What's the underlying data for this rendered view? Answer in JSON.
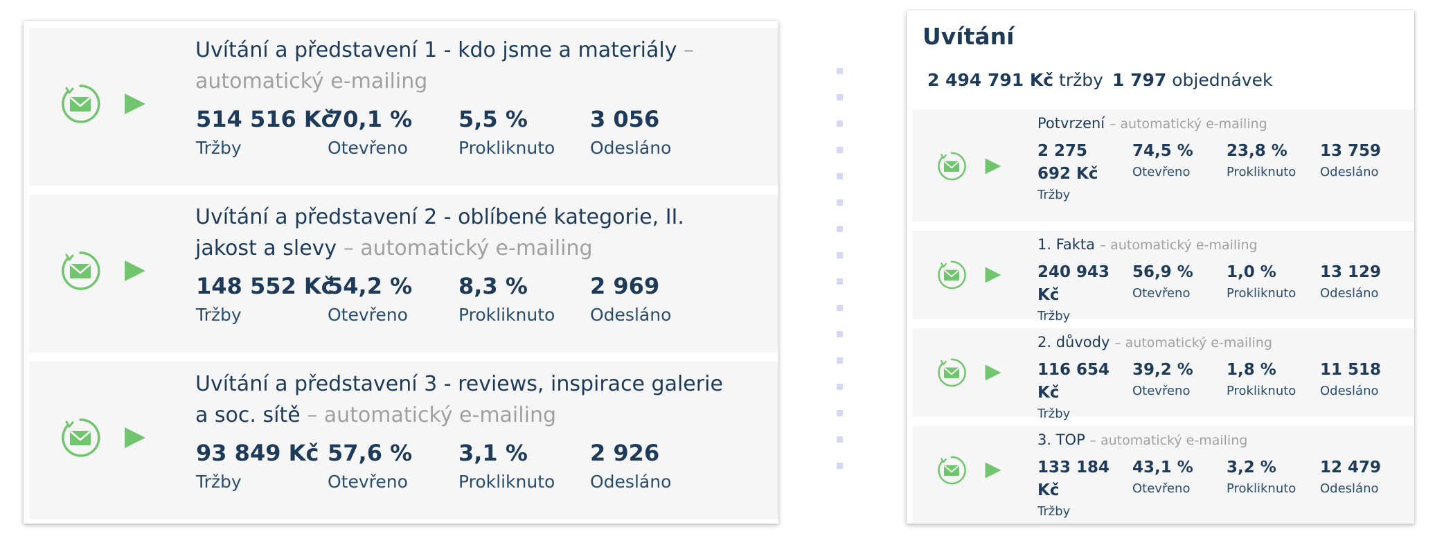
{
  "colors": {
    "accent_green": "#71c56f",
    "text_navy": "#1d3b58",
    "muted": "#a0a0a0",
    "row_bg": "#f6f6f6"
  },
  "icons": {
    "mail": "mail-circle-icon",
    "play": "play-icon"
  },
  "left_campaigns": [
    {
      "title": "Uvítání a představení 1 - kdo jsme a materiály",
      "type": "– automatický e-mailing",
      "revenue": "514 516 Kč",
      "revenue_label": "Tržby",
      "opened": "70,1 %",
      "opened_label": "Otevřeno",
      "clicked": "5,5 %",
      "clicked_label": "Prokliknuto",
      "sent": "3 056",
      "sent_label": "Odesláno"
    },
    {
      "title": "Uvítání a představení 2 - oblíbené kategorie, II. jakost a slevy",
      "type": "– automatický e-mailing",
      "revenue": "148 552 Kč",
      "revenue_label": "Tržby",
      "opened": "54,2 %",
      "opened_label": "Otevřeno",
      "clicked": "8,3 %",
      "clicked_label": "Prokliknuto",
      "sent": "2 969",
      "sent_label": "Odesláno"
    },
    {
      "title": "Uvítání a představení 3 - reviews, inspirace galerie a soc. sítě",
      "type": "– automatický e-mailing",
      "revenue": "93 849 Kč",
      "revenue_label": "Tržby",
      "opened": "57,6 %",
      "opened_label": "Otevřeno",
      "clicked": "3,1 %",
      "clicked_label": "Prokliknuto",
      "sent": "2 926",
      "sent_label": "Odesláno"
    }
  ],
  "right_panel": {
    "title": "Uvítání",
    "revenue_value": "2 494 791 Kč",
    "revenue_label": "tržby",
    "orders_value": "1 797",
    "orders_label": "objednávek",
    "campaigns": [
      {
        "name": "Potvrzení",
        "type": "– automatický e-mailing",
        "revenue": "2 275 692 Kč",
        "revenue_label": "Tržby",
        "opened": "74,5 %",
        "opened_label": "Otevřeno",
        "clicked": "23,8 %",
        "clicked_label": "Prokliknuto",
        "sent": "13 759",
        "sent_label": "Odesláno"
      },
      {
        "name": "1. Fakta",
        "type": "– automatický e-mailing",
        "revenue": "240 943 Kč",
        "revenue_label": "Tržby",
        "opened": "56,9 %",
        "opened_label": "Otevřeno",
        "clicked": "1,0 %",
        "clicked_label": "Prokliknuto",
        "sent": "13 129",
        "sent_label": "Odesláno"
      },
      {
        "name": "2. důvody",
        "type": "– automatický e-mailing",
        "revenue": "116 654 Kč",
        "revenue_label": "Tržby",
        "opened": "39,2 %",
        "opened_label": "Otevřeno",
        "clicked": "1,8 %",
        "clicked_label": "Prokliknuto",
        "sent": "11 518",
        "sent_label": "Odesláno"
      },
      {
        "name": "3. TOP",
        "type": "– automatický e-mailing",
        "revenue": "133 184 Kč",
        "revenue_label": "Tržby",
        "opened": "43,1 %",
        "opened_label": "Otevřeno",
        "clicked": "3,2 %",
        "clicked_label": "Prokliknuto",
        "sent": "12 479",
        "sent_label": "Odesláno"
      }
    ]
  }
}
